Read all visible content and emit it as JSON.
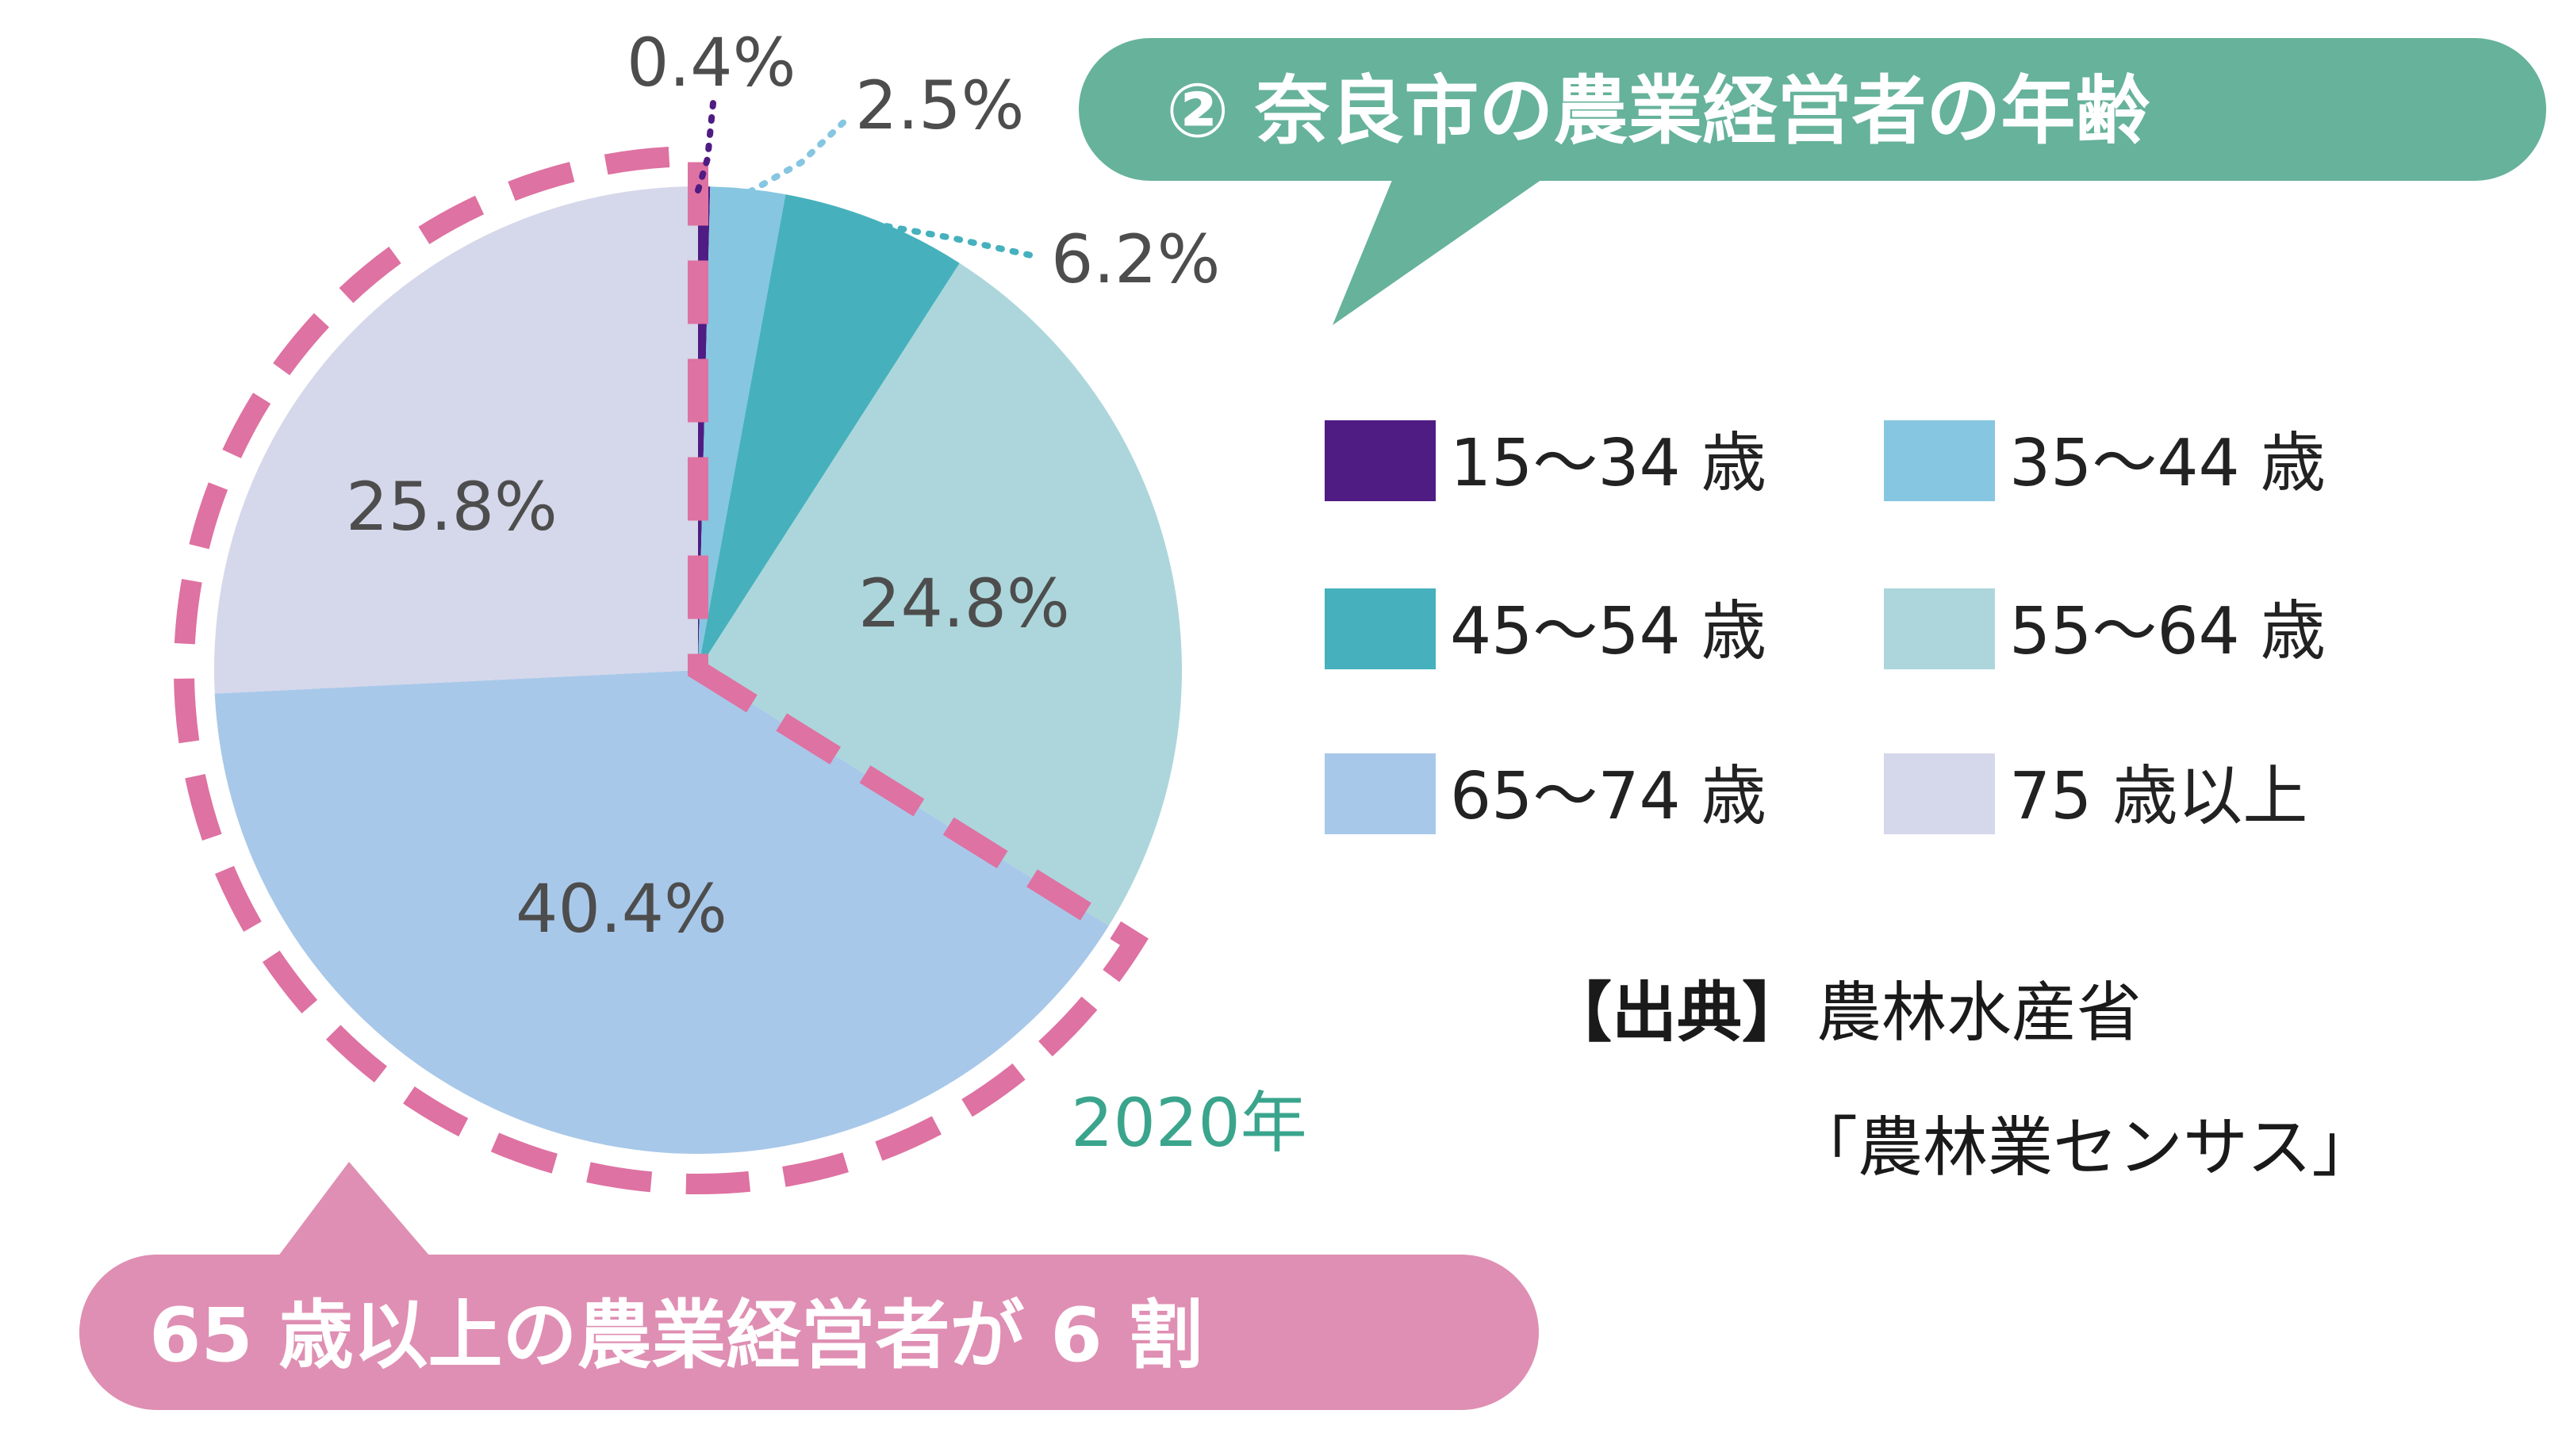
{
  "chart_data": {
    "type": "pie",
    "title": "② 奈良市の農業経営者の年齢",
    "year_label": "2020年",
    "categories": [
      "15～34 歳",
      "35～44 歳",
      "45～54 歳",
      "55～64 歳",
      "65～74 歳",
      "75 歳以上"
    ],
    "values": [
      0.4,
      2.5,
      6.2,
      24.8,
      40.4,
      25.8
    ],
    "value_labels": [
      "0.4%",
      "2.5%",
      "6.2%",
      "24.8%",
      "40.4%",
      "25.8%"
    ],
    "colors": [
      "#4f1c83",
      "#86c6e0",
      "#46b1bd",
      "#acd6db",
      "#a8c8e9",
      "#d5d7ea"
    ],
    "legend_position": "right",
    "highlight_color": "#de72a2",
    "callout": "65 歳以上の農業経営者が 6 割",
    "source_label": "【出典】",
    "source_line1": "農林水産省",
    "source_line2": "「農林業センサス」",
    "title_bg": "#66b29b",
    "callout_bg": "#df8fb3"
  }
}
